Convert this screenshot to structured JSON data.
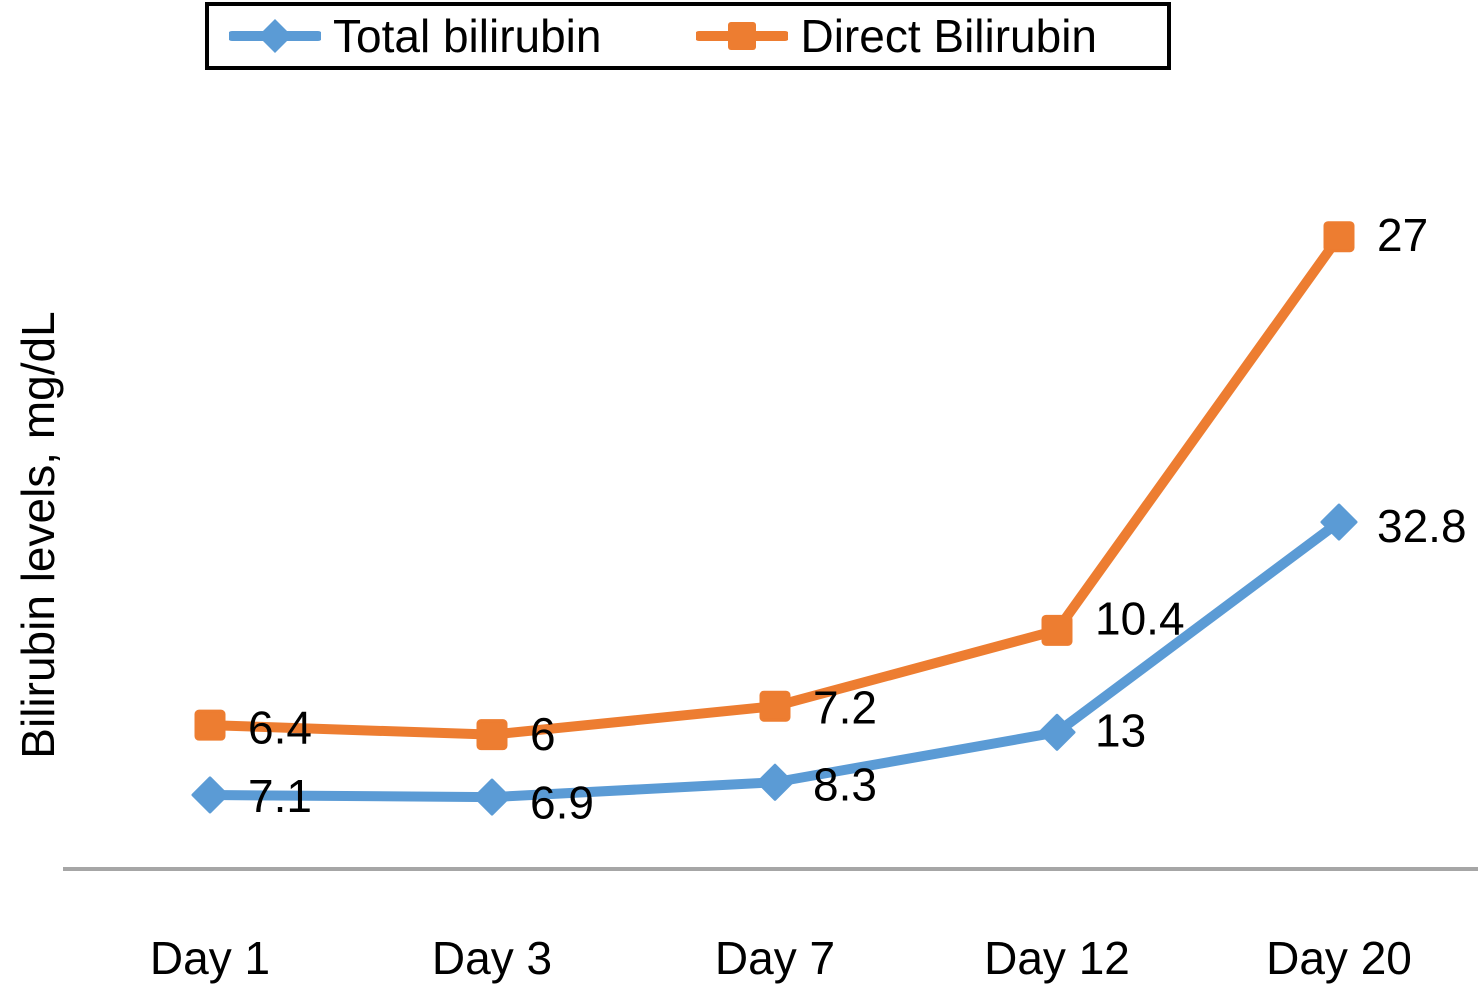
{
  "figure": {
    "background": "#FFFFFF",
    "text_color": "#000000"
  },
  "legend": {
    "border_color": "#000000",
    "position": "top"
  },
  "chart_data": {
    "type": "line",
    "title": "",
    "xlabel": "",
    "ylabel": "Bilirubin levels, mg/dL",
    "categories": [
      "Day 1",
      "Day 3",
      "Day 7",
      "Day 12",
      "Day 20"
    ],
    "series": [
      {
        "name": "Total bilirubin",
        "color": "#5B9BD5",
        "marker": "diamond",
        "values": [
          7.1,
          6.9,
          8.3,
          13,
          32.8
        ],
        "data_labels": [
          "7.1",
          "6.9",
          "8.3",
          "13",
          "32.8"
        ]
      },
      {
        "name": "Direct Bilirubin",
        "color": "#ED7D31",
        "marker": "square",
        "values": [
          6.4,
          6,
          7.2,
          10.4,
          27
        ],
        "data_labels": [
          "6.4",
          "6",
          "7.2",
          "10.4",
          "27"
        ]
      }
    ],
    "grid": false,
    "y_axis_ticks": [],
    "x_axis_line_color": "#A6A6A6",
    "data_label_color": "#000000",
    "legend_position": "top"
  }
}
